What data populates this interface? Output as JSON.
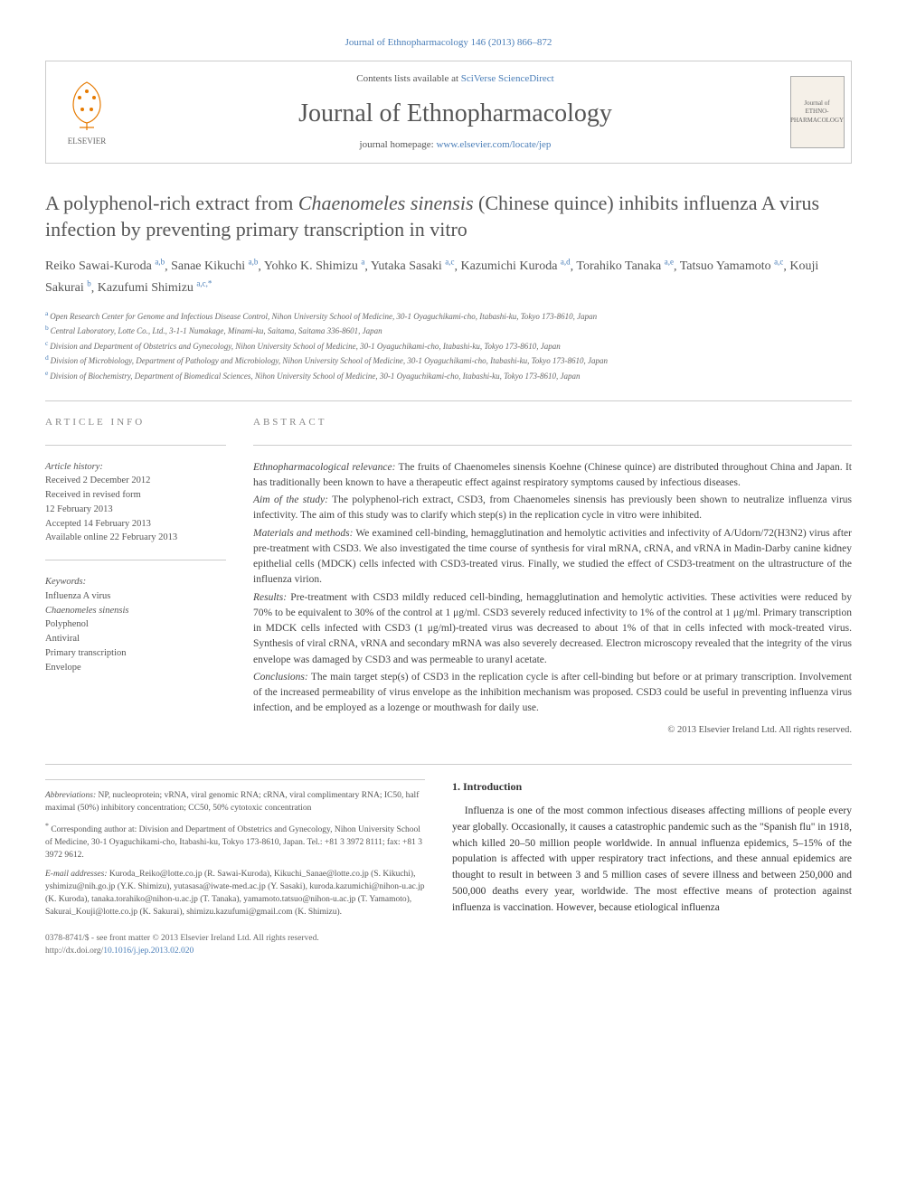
{
  "top_link": "Journal of Ethnopharmacology 146 (2013) 866–872",
  "header": {
    "contents_text": "Contents lists available at ",
    "contents_link": "SciVerse ScienceDirect",
    "journal_name": "Journal of Ethnopharmacology",
    "homepage_text": "journal homepage: ",
    "homepage_link": "www.elsevier.com/locate/jep",
    "elsevier_label": "ELSEVIER",
    "cover_label_top": "Journal of",
    "cover_label_main": "ETHNO-PHARMACOLOGY"
  },
  "title_parts": {
    "pre": "A polyphenol-rich extract from ",
    "ital": "Chaenomeles sinensis",
    "post": " (Chinese quince) inhibits influenza A virus infection by preventing primary transcription in vitro"
  },
  "authors_html_parts": [
    {
      "name": "Reiko Sawai-Kuroda",
      "refs": "a,b"
    },
    {
      "name": "Sanae Kikuchi",
      "refs": "a,b"
    },
    {
      "name": "Yohko K. Shimizu",
      "refs": "a"
    },
    {
      "name": "Yutaka Sasaki",
      "refs": "a,c"
    },
    {
      "name": "Kazumichi Kuroda",
      "refs": "a,d"
    },
    {
      "name": "Torahiko Tanaka",
      "refs": "a,e"
    },
    {
      "name": "Tatsuo Yamamoto",
      "refs": "a,c"
    },
    {
      "name": "Kouji Sakurai",
      "refs": "b"
    },
    {
      "name": "Kazufumi Shimizu",
      "refs": "a,c,*"
    }
  ],
  "affiliations": [
    {
      "ref": "a",
      "text": "Open Research Center for Genome and Infectious Disease Control, Nihon University School of Medicine, 30-1 Oyaguchikami-cho, Itabashi-ku, Tokyo 173-8610, Japan"
    },
    {
      "ref": "b",
      "text": "Central Laboratory, Lotte Co., Ltd., 3-1-1 Numakage, Minami-ku, Saitama, Saitama 336-8601, Japan"
    },
    {
      "ref": "c",
      "text": "Division and Department of Obstetrics and Gynecology, Nihon University School of Medicine, 30-1 Oyaguchikami-cho, Itabashi-ku, Tokyo 173-8610, Japan"
    },
    {
      "ref": "d",
      "text": "Division of Microbiology, Department of Pathology and Microbiology, Nihon University School of Medicine, 30-1 Oyaguchikami-cho, Itabashi-ku, Tokyo 173-8610, Japan"
    },
    {
      "ref": "e",
      "text": "Division of Biochemistry, Department of Biomedical Sciences, Nihon University School of Medicine, 30-1 Oyaguchikami-cho, Itabashi-ku, Tokyo 173-8610, Japan"
    }
  ],
  "article_info": {
    "heading": "ARTICLE INFO",
    "history_label": "Article history:",
    "history_lines": [
      "Received 2 December 2012",
      "Received in revised form",
      "12 February 2013",
      "Accepted 14 February 2013",
      "Available online 22 February 2013"
    ],
    "keywords_label": "Keywords:",
    "keywords": [
      "Influenza A virus",
      "Chaenomeles sinensis",
      "Polyphenol",
      "Antiviral",
      "Primary transcription",
      "Envelope"
    ]
  },
  "abstract": {
    "heading": "ABSTRACT",
    "paras": [
      {
        "label": "Ethnopharmacological relevance:",
        "body": " The fruits of Chaenomeles sinensis Koehne (Chinese quince) are distributed throughout China and Japan. It has traditionally been known to have a therapeutic effect against respiratory symptoms caused by infectious diseases."
      },
      {
        "label": "Aim of the study:",
        "body": " The polyphenol-rich extract, CSD3, from Chaenomeles sinensis has previously been shown to neutralize influenza virus infectivity. The aim of this study was to clarify which step(s) in the replication cycle in vitro were inhibited."
      },
      {
        "label": "Materials and methods:",
        "body": " We examined cell-binding, hemagglutination and hemolytic activities and infectivity of A/Udorn/72(H3N2) virus after pre-treatment with CSD3. We also investigated the time course of synthesis for viral mRNA, cRNA, and vRNA in Madin-Darby canine kidney epithelial cells (MDCK) cells infected with CSD3-treated virus. Finally, we studied the effect of CSD3-treatment on the ultrastructure of the influenza virion."
      },
      {
        "label": "Results:",
        "body": " Pre-treatment with CSD3 mildly reduced cell-binding, hemagglutination and hemolytic activities. These activities were reduced by 70% to be equivalent to 30% of the control at 1 μg/ml. CSD3 severely reduced infectivity to 1% of the control at 1 μg/ml. Primary transcription in MDCK cells infected with CSD3 (1 μg/ml)-treated virus was decreased to about 1% of that in cells infected with mock-treated virus. Synthesis of viral cRNA, vRNA and secondary mRNA was also severely decreased. Electron microscopy revealed that the integrity of the virus envelope was damaged by CSD3 and was permeable to uranyl acetate."
      },
      {
        "label": "Conclusions:",
        "body": " The main target step(s) of CSD3 in the replication cycle is after cell-binding but before or at primary transcription. Involvement of the increased permeability of virus envelope as the inhibition mechanism was proposed. CSD3 could be useful in preventing influenza virus infection, and be employed as a lozenge or mouthwash for daily use."
      }
    ],
    "copyright": "© 2013 Elsevier Ireland Ltd. All rights reserved."
  },
  "footnotes": {
    "abbrev_label": "Abbreviations:",
    "abbrev_text": " NP, nucleoprotein; vRNA, viral genomic RNA; cRNA, viral complimentary RNA; IC50, half maximal (50%) inhibitory concentration; CC50, 50% cytotoxic concentration",
    "corr_marker": "*",
    "corr_text": " Corresponding author at: Division and Department of Obstetrics and Gynecology, Nihon University School of Medicine, 30-1 Oyaguchikami-cho, Itabashi-ku, Tokyo 173-8610, Japan. Tel.: +81 3 3972 8111; fax: +81 3 3972 9612.",
    "emails_label": "E-mail addresses:",
    "emails_text": " Kuroda_Reiko@lotte.co.jp (R. Sawai-Kuroda), Kikuchi_Sanae@lotte.co.jp (S. Kikuchi), yshimizu@nih.go.jp (Y.K. Shimizu), yutasasa@iwate-med.ac.jp (Y. Sasaki), kuroda.kazumichi@nihon-u.ac.jp (K. Kuroda), tanaka.torahiko@nihon-u.ac.jp (T. Tanaka), yamamoto.tatsuo@nihon-u.ac.jp (T. Yamamoto), Sakurai_Kouji@lotte.co.jp (K. Sakurai), shimizu.kazufumi@gmail.com (K. Shimizu)."
  },
  "intro": {
    "heading": "1. Introduction",
    "text": "Influenza is one of the most common infectious diseases affecting millions of people every year globally. Occasionally, it causes a catastrophic pandemic such as the \"Spanish flu\" in 1918, which killed 20–50 million people worldwide. In annual influenza epidemics, 5–15% of the population is affected with upper respiratory tract infections, and these annual epidemics are thought to result in between 3 and 5 million cases of severe illness and between 250,000 and 500,000 deaths every year, worldwide. The most effective means of protection against influenza is vaccination. However, because etiological influenza"
  },
  "issn": "0378-8741/$ - see front matter © 2013 Elsevier Ireland Ltd. All rights reserved.",
  "doi_prefix": "http://dx.doi.org/",
  "doi": "10.1016/j.jep.2013.02.020",
  "colors": {
    "link": "#4a7eb8",
    "text": "#333333",
    "muted": "#555555",
    "border": "#cccccc"
  }
}
